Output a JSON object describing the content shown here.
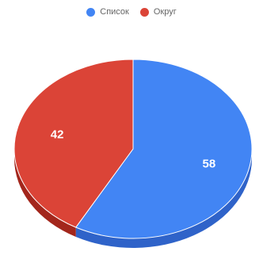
{
  "chart_data": {
    "type": "pie",
    "style": "3d",
    "legend_position": "top",
    "series": [
      {
        "name": "Список",
        "value": 58,
        "label": "58",
        "color": "#4285f4",
        "side_color": "#2f63c9"
      },
      {
        "name": "Округ",
        "value": 42,
        "label": "42",
        "color": "#db4437",
        "side_color": "#a3261c"
      }
    ]
  }
}
